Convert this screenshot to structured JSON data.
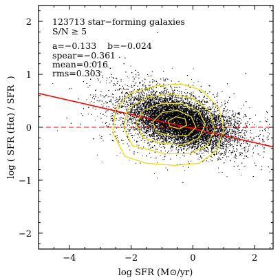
{
  "chart_data": {
    "type": "scatter",
    "xlabel": "log SFR (M⊙/yr)",
    "ylabel": "log ( SFR (Hα) / SFR  )",
    "xlim": [
      -5,
      2.6
    ],
    "ylim": [
      -2.3,
      2.3
    ],
    "x_ticks": [
      -4,
      -2,
      0,
      2
    ],
    "y_ticks": [
      -2,
      -1,
      0,
      1,
      2
    ],
    "x_tick_labels": [
      "−4",
      "−2",
      "0",
      "2"
    ],
    "y_tick_labels": [
      "−2",
      "−1",
      "0",
      "1",
      "2"
    ],
    "grid": false,
    "annotations": [
      "123713 star−forming galaxies",
      "S/N ≥ 5",
      "a=−0.133    b=−0.024",
      "spear=−0.361",
      "mean=0.016",
      "rms=0.303"
    ],
    "fit_line": {
      "a": -0.133,
      "b": -0.024,
      "color": "#ff0000"
    },
    "reference_line": {
      "y": 0,
      "style": "dashed",
      "color": "#ff0000"
    },
    "contour_color": "#e8e000",
    "point_color": "#000000",
    "contours": [
      [
        [
          -2.2,
          -0.55
        ],
        [
          -2.6,
          -0.1
        ],
        [
          -2.5,
          0.35
        ],
        [
          -2.0,
          0.65
        ],
        [
          -1.2,
          0.78
        ],
        [
          -0.4,
          0.82
        ],
        [
          0.3,
          0.7
        ],
        [
          0.85,
          0.35
        ],
        [
          1.0,
          -0.05
        ],
        [
          0.75,
          -0.45
        ],
        [
          0.2,
          -0.68
        ],
        [
          -0.6,
          -0.72
        ],
        [
          -1.5,
          -0.68
        ]
      ],
      [
        [
          -1.95,
          -0.35
        ],
        [
          -2.25,
          0.0
        ],
        [
          -2.1,
          0.35
        ],
        [
          -1.5,
          0.57
        ],
        [
          -0.7,
          0.63
        ],
        [
          0.0,
          0.55
        ],
        [
          0.55,
          0.3
        ],
        [
          0.7,
          -0.05
        ],
        [
          0.45,
          -0.35
        ],
        [
          -0.1,
          -0.5
        ],
        [
          -0.9,
          -0.5
        ]
      ],
      [
        [
          -1.6,
          -0.2
        ],
        [
          -1.85,
          0.05
        ],
        [
          -1.6,
          0.32
        ],
        [
          -1.0,
          0.45
        ],
        [
          -0.35,
          0.45
        ],
        [
          0.2,
          0.3
        ],
        [
          0.4,
          0.05
        ],
        [
          0.2,
          -0.2
        ],
        [
          -0.3,
          -0.33
        ],
        [
          -1.0,
          -0.3
        ]
      ],
      [
        [
          -1.2,
          -0.08
        ],
        [
          -1.3,
          0.1
        ],
        [
          -1.0,
          0.28
        ],
        [
          -0.5,
          0.32
        ],
        [
          -0.05,
          0.2
        ],
        [
          0.1,
          0.0
        ],
        [
          -0.15,
          -0.15
        ],
        [
          -0.7,
          -0.17
        ]
      ],
      [
        [
          -0.75,
          0.02
        ],
        [
          -0.8,
          0.12
        ],
        [
          -0.55,
          0.2
        ],
        [
          -0.25,
          0.16
        ],
        [
          -0.2,
          0.04
        ],
        [
          -0.45,
          -0.03
        ]
      ]
    ]
  }
}
